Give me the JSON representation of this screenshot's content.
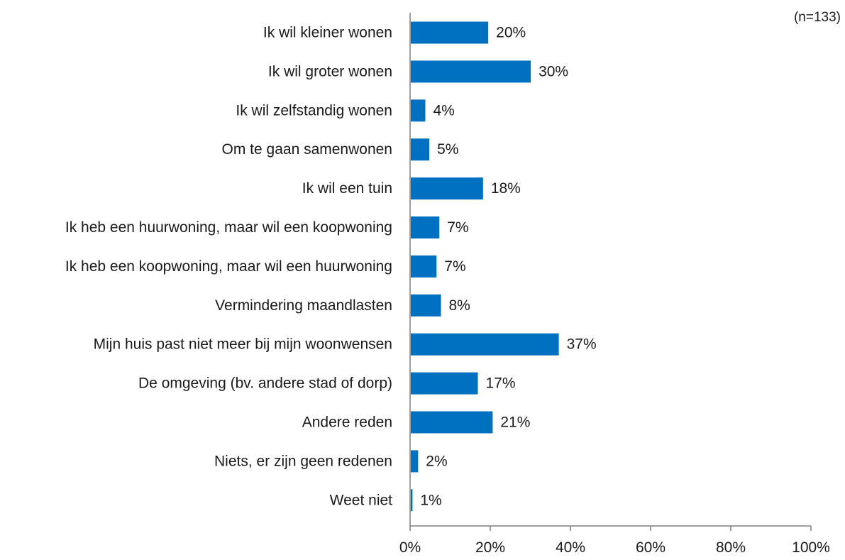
{
  "chart_data": {
    "type": "bar",
    "orientation": "horizontal",
    "note": "(n=133)",
    "categories": [
      "Ik wil kleiner wonen",
      "Ik wil groter wonen",
      "Ik wil zelfstandig wonen",
      "Om te gaan samenwonen",
      "Ik wil een tuin",
      "Ik heb een huurwoning, maar wil een koopwoning",
      "Ik heb een koopwoning, maar wil een huurwoning",
      "Vermindering maandlasten",
      "Mijn huis past niet meer bij mijn woonwensen",
      "De omgeving (bv. andere stad of dorp)",
      "Andere reden",
      "Niets, er zijn geen redenen",
      "Weet niet"
    ],
    "values": [
      19.5,
      30.1,
      3.8,
      4.8,
      18.2,
      7.3,
      6.6,
      7.7,
      37.1,
      16.9,
      20.6,
      2.0,
      0.6
    ],
    "value_labels": [
      "20%",
      "30%",
      "4%",
      "5%",
      "18%",
      "7%",
      "7%",
      "8%",
      "37%",
      "17%",
      "21%",
      "2%",
      "1%"
    ],
    "xlim": [
      0,
      100
    ],
    "xticks": [
      0,
      20,
      40,
      60,
      80,
      100
    ],
    "xtick_labels": [
      "0%",
      "20%",
      "40%",
      "60%",
      "80%",
      "100%"
    ],
    "grid": false,
    "legend": "none",
    "colors": {
      "bar": "#0070C0",
      "axis": "#7f7f7f",
      "text": "#1a1a1a"
    }
  }
}
